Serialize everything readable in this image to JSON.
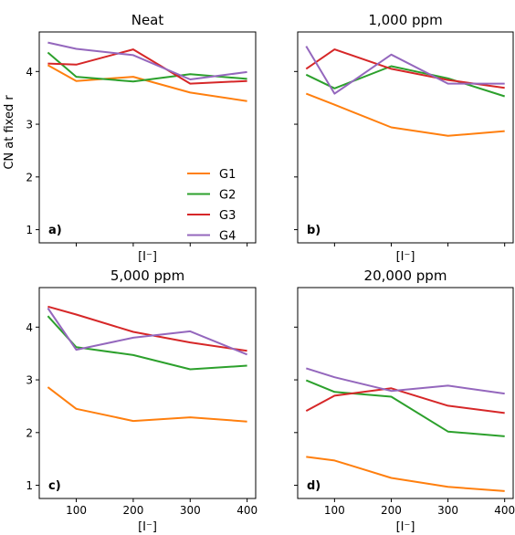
{
  "chart_data": {
    "type": "line",
    "ylabel": "CN at fixed r",
    "xlabel": "[I⁻]",
    "ylim": [
      0.75,
      4.75
    ],
    "yticks": [
      1,
      2,
      3,
      4
    ],
    "xlim": [
      35,
      415
    ],
    "xticks": [
      100,
      200,
      300,
      400
    ],
    "x": [
      50,
      100,
      200,
      300,
      400
    ],
    "legend": {
      "entries": [
        "G1",
        "G2",
        "G3",
        "G4"
      ],
      "placement": "lower-right",
      "panel": 0
    },
    "colors": {
      "G1": "#ff7f0e",
      "G2": "#2ca02c",
      "G3": "#d62728",
      "G4": "#9467bd"
    },
    "panels": [
      {
        "title": "Neat",
        "tag": "a)",
        "series": [
          {
            "name": "G1",
            "values": [
              4.12,
              3.82,
              3.9,
              3.6,
              3.44
            ]
          },
          {
            "name": "G2",
            "values": [
              4.36,
              3.9,
              3.81,
              3.95,
              3.86
            ]
          },
          {
            "name": "G3",
            "values": [
              4.15,
              4.13,
              4.42,
              3.77,
              3.82
            ]
          },
          {
            "name": "G4",
            "values": [
              4.55,
              4.43,
              4.31,
              3.85,
              3.99
            ]
          }
        ]
      },
      {
        "title": "1,000 ppm",
        "tag": "b)",
        "series": [
          {
            "name": "G1",
            "values": [
              3.58,
              3.37,
              2.94,
              2.78,
              2.87
            ]
          },
          {
            "name": "G2",
            "values": [
              3.94,
              3.68,
              4.1,
              3.87,
              3.53
            ]
          },
          {
            "name": "G3",
            "values": [
              4.05,
              4.42,
              4.05,
              3.84,
              3.69
            ]
          },
          {
            "name": "G4",
            "values": [
              4.48,
              3.58,
              4.32,
              3.77,
              3.77
            ]
          }
        ]
      },
      {
        "title": "5,000 ppm",
        "tag": "c)",
        "series": [
          {
            "name": "G1",
            "values": [
              2.86,
              2.45,
              2.22,
              2.29,
              2.21
            ]
          },
          {
            "name": "G2",
            "values": [
              4.21,
              3.62,
              3.47,
              3.2,
              3.27
            ]
          },
          {
            "name": "G3",
            "values": [
              4.39,
              4.24,
              3.91,
              3.71,
              3.55
            ]
          },
          {
            "name": "G4",
            "values": [
              4.36,
              3.57,
              3.8,
              3.92,
              3.48
            ]
          }
        ]
      },
      {
        "title": "20,000 ppm",
        "tag": "d)",
        "series": [
          {
            "name": "G1",
            "values": [
              1.54,
              1.47,
              1.14,
              0.97,
              0.89
            ]
          },
          {
            "name": "G2",
            "values": [
              2.99,
              2.77,
              2.68,
              2.02,
              1.93
            ]
          },
          {
            "name": "G3",
            "values": [
              2.41,
              2.7,
              2.84,
              2.51,
              2.37
            ]
          },
          {
            "name": "G4",
            "values": [
              3.22,
              3.05,
              2.79,
              2.89,
              2.74
            ]
          }
        ]
      }
    ]
  }
}
